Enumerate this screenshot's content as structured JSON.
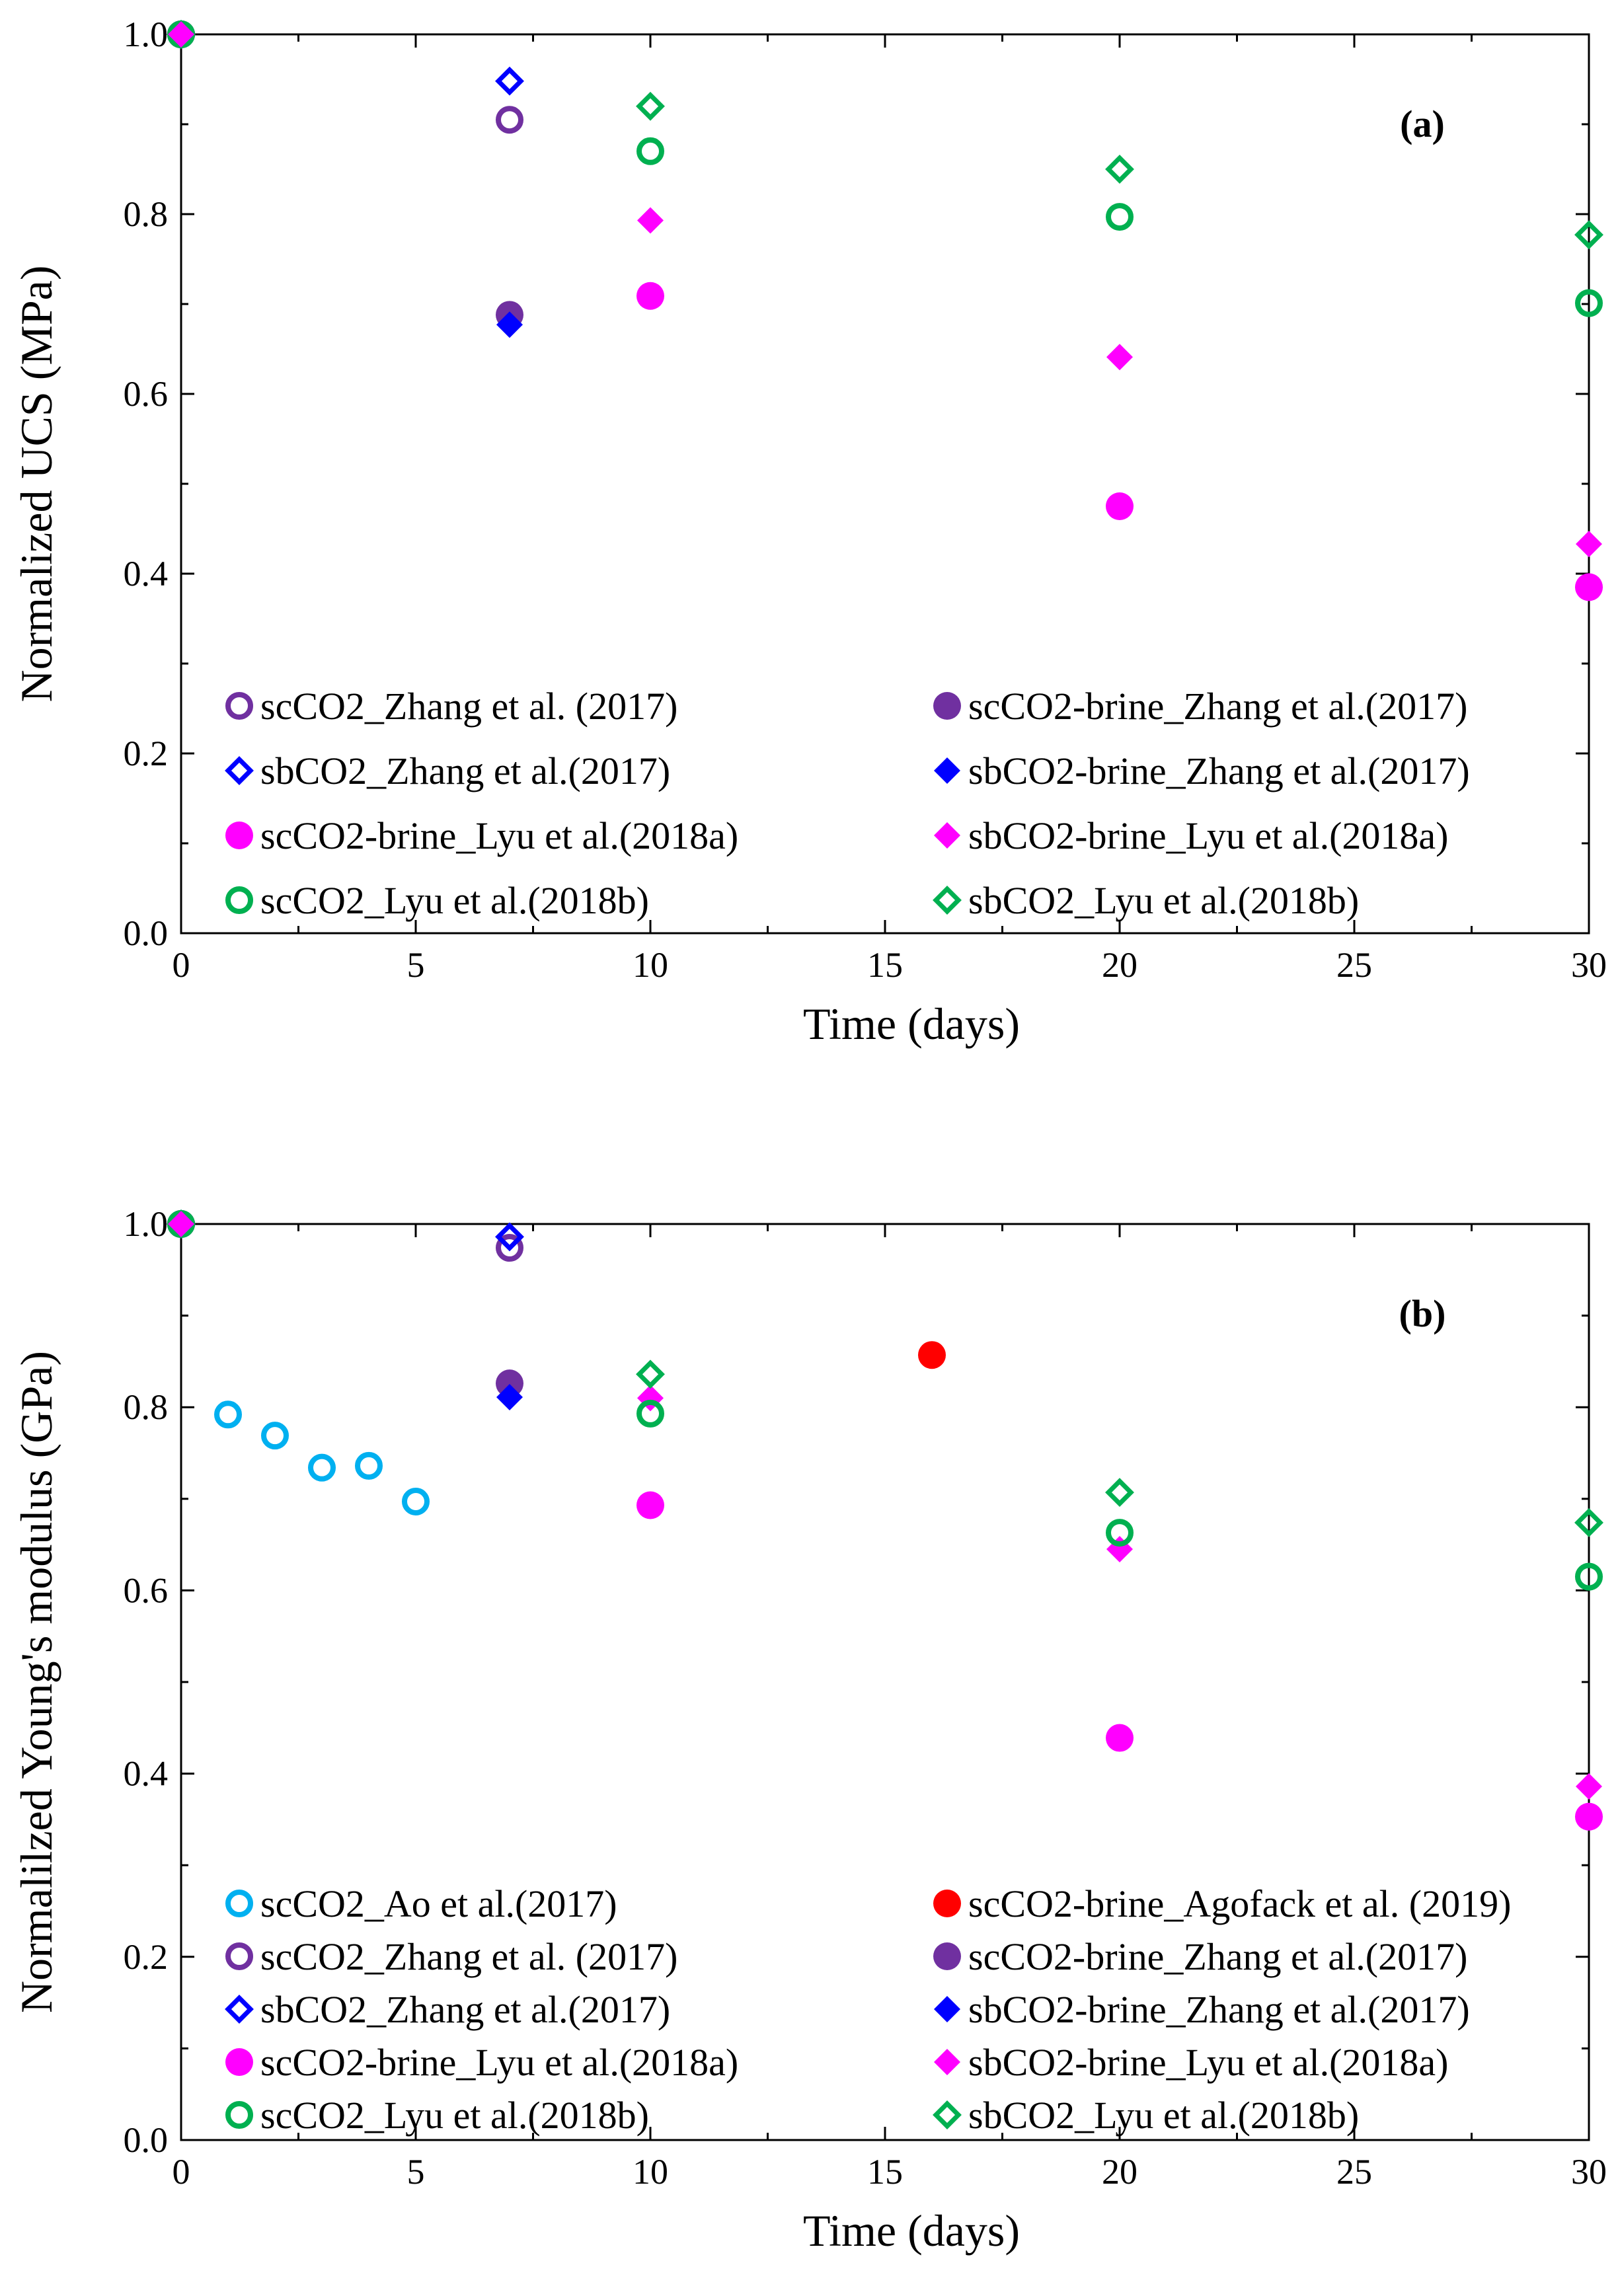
{
  "chart_data": [
    {
      "type": "scatter",
      "panel_label": "(a)",
      "xlabel": "Time (days)",
      "ylabel": "Normalized UCS (MPa)",
      "xlim": [
        0,
        30
      ],
      "ylim": [
        0,
        1.0
      ],
      "xticks": [
        "0",
        "5",
        "10",
        "15",
        "20",
        "25",
        "30"
      ],
      "yticks": [
        "0.0",
        "0.2",
        "0.4",
        "0.6",
        "0.8",
        "1.0"
      ],
      "legend_position": "bottom",
      "series": [
        {
          "name": "scCO2_Zhang et al. (2017)",
          "marker": "circle-open",
          "color": "#7030a0",
          "points": [
            [
              0,
              1.0
            ],
            [
              7,
              0.905
            ]
          ]
        },
        {
          "name": "scCO2-brine_Zhang et al.(2017)",
          "marker": "circle-filled",
          "color": "#7030a0",
          "points": [
            [
              0,
              1.0
            ],
            [
              7,
              0.688
            ]
          ]
        },
        {
          "name": "sbCO2_Zhang et al.(2017)",
          "marker": "diamond-open",
          "color": "#0000ff",
          "points": [
            [
              0,
              1.0
            ],
            [
              7,
              0.948
            ]
          ]
        },
        {
          "name": "sbCO2-brine_Zhang et al.(2017)",
          "marker": "diamond-filled",
          "color": "#0000ff",
          "points": [
            [
              0,
              1.0
            ],
            [
              7,
              0.677
            ]
          ]
        },
        {
          "name": "scCO2-brine_Lyu et al.(2018a)",
          "marker": "circle-filled",
          "color": "#ff00ff",
          "points": [
            [
              0,
              1.0
            ],
            [
              10,
              0.709
            ],
            [
              20,
              0.475
            ],
            [
              30,
              0.385
            ]
          ]
        },
        {
          "name": "sbCO2-brine_Lyu et al.(2018a)",
          "marker": "diamond-filled",
          "color": "#ff00ff",
          "points": [
            [
              0,
              1.0
            ],
            [
              10,
              0.793
            ],
            [
              20,
              0.641
            ],
            [
              30,
              0.433
            ]
          ]
        },
        {
          "name": "scCO2_Lyu et al.(2018b)",
          "marker": "circle-open",
          "color": "#00b050",
          "points": [
            [
              0,
              1.0
            ],
            [
              10,
              0.87
            ],
            [
              20,
              0.797
            ],
            [
              30,
              0.701
            ]
          ]
        },
        {
          "name": "sbCO2_Lyu et al.(2018b)",
          "marker": "diamond-open",
          "color": "#00b050",
          "points": [
            [
              0,
              1.0
            ],
            [
              10,
              0.92
            ],
            [
              20,
              0.85
            ],
            [
              30,
              0.777
            ]
          ]
        },
        {
          "name": "",
          "marker": "circle-filled",
          "color": "#00b050",
          "points": [
            [
              0,
              1.0
            ]
          ]
        },
        {
          "name": "",
          "marker": "diamond-filled",
          "color": "#ff00ff",
          "points": [
            [
              0,
              1.0
            ]
          ]
        }
      ]
    },
    {
      "type": "scatter",
      "panel_label": "(b)",
      "xlabel": "Time (days)",
      "ylabel": "Normalilzed Young's modulus (GPa)",
      "xlim": [
        0,
        30
      ],
      "ylim": [
        0,
        1.0
      ],
      "xticks": [
        "0",
        "5",
        "10",
        "15",
        "20",
        "25",
        "30"
      ],
      "yticks": [
        "0.0",
        "0.2",
        "0.4",
        "0.6",
        "0.8",
        "1.0"
      ],
      "legend_position": "bottom",
      "series": [
        {
          "name": "scCO2_Ao et al.(2017)",
          "marker": "circle-open",
          "color": "#00b0f0",
          "points": [
            [
              1,
              0.792
            ],
            [
              2,
              0.769
            ],
            [
              3,
              0.734
            ],
            [
              4,
              0.736
            ],
            [
              5,
              0.697
            ]
          ]
        },
        {
          "name": "scCO2-brine_Agofack et al. (2019)",
          "marker": "circle-filled",
          "color": "#ff0000",
          "points": [
            [
              16,
              0.857
            ]
          ]
        },
        {
          "name": "scCO2_Zhang et al. (2017)",
          "marker": "circle-open",
          "color": "#7030a0",
          "points": [
            [
              0,
              1.0
            ],
            [
              7,
              0.974
            ]
          ]
        },
        {
          "name": "scCO2-brine_Zhang et al.(2017)",
          "marker": "circle-filled",
          "color": "#7030a0",
          "points": [
            [
              0,
              1.0
            ],
            [
              7,
              0.826
            ]
          ]
        },
        {
          "name": "sbCO2_Zhang et al.(2017)",
          "marker": "diamond-open",
          "color": "#0000ff",
          "points": [
            [
              0,
              1.0
            ],
            [
              7,
              0.986
            ]
          ]
        },
        {
          "name": "sbCO2-brine_Zhang et al.(2017)",
          "marker": "diamond-filled",
          "color": "#0000ff",
          "points": [
            [
              0,
              1.0
            ],
            [
              7,
              0.811
            ]
          ]
        },
        {
          "name": "scCO2-brine_Lyu et al.(2018a)",
          "marker": "circle-filled",
          "color": "#ff00ff",
          "points": [
            [
              0,
              1.0
            ],
            [
              10,
              0.693
            ],
            [
              20,
              0.439
            ],
            [
              30,
              0.353
            ]
          ]
        },
        {
          "name": "sbCO2-brine_Lyu et al.(2018a)",
          "marker": "diamond-filled",
          "color": "#ff00ff",
          "points": [
            [
              0,
              1.0
            ],
            [
              10,
              0.81
            ],
            [
              20,
              0.645
            ],
            [
              30,
              0.386
            ]
          ]
        },
        {
          "name": "scCO2_Lyu et al.(2018b)",
          "marker": "circle-open",
          "color": "#00b050",
          "points": [
            [
              0,
              1.0
            ],
            [
              10,
              0.793
            ],
            [
              20,
              0.663
            ],
            [
              30,
              0.615
            ]
          ]
        },
        {
          "name": "sbCO2_Lyu et al.(2018b)",
          "marker": "diamond-open",
          "color": "#00b050",
          "points": [
            [
              0,
              1.0
            ],
            [
              10,
              0.836
            ],
            [
              20,
              0.707
            ],
            [
              30,
              0.674
            ]
          ]
        },
        {
          "name": "",
          "marker": "circle-filled",
          "color": "#00b050",
          "points": [
            [
              0,
              1.0
            ]
          ]
        },
        {
          "name": "",
          "marker": "diamond-filled",
          "color": "#ff00ff",
          "points": [
            [
              0,
              1.0
            ]
          ]
        }
      ]
    }
  ]
}
